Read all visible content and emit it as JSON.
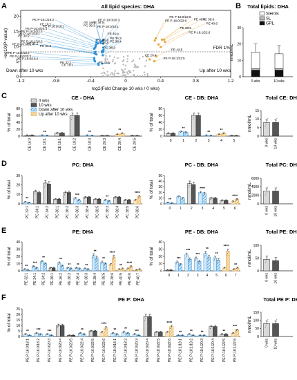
{
  "colors": {
    "grey": "#d9d9d9",
    "dark": "#555555",
    "blue": "#2b8fd6",
    "orange": "#e3a53b",
    "black": "#111111"
  },
  "panels": [
    {
      "letter": "A"
    },
    {
      "letter": "B"
    },
    {
      "letter": "C"
    },
    {
      "letter": "D"
    },
    {
      "letter": "E"
    },
    {
      "letter": "F"
    }
  ],
  "chart_data": [
    {
      "type": "scatter",
      "panel": "A",
      "title": "All lipid species: DHA",
      "xlabel": "log2(Fold Change 10 wks / 0 wks)",
      "ylabel": "-log10(P-value)",
      "xlim": [
        -1.2,
        1.2
      ],
      "xticks": [
        "-1.2",
        "-0.8",
        "-0.4",
        "0",
        "0.4",
        "0.8",
        "1.2"
      ],
      "yticks": [
        "0",
        "5",
        "10",
        "15",
        "20"
      ],
      "ylim": [
        0,
        22
      ],
      "threshold_label": "FDR 1%",
      "left_note": "Down after 10 wks",
      "right_note": "Up after 10 wks",
      "labels": [
        {
          "text": "PE P-18:0/22:6",
          "x": 0.5,
          "y": 19.5,
          "c": "orange"
        },
        {
          "text": "PE P-16:0/22:6",
          "x": 0.45,
          "y": 18.2,
          "c": "orange"
        },
        {
          "text": "PE 40:6",
          "x": 0.78,
          "y": 18.7,
          "c": "orange"
        },
        {
          "text": "PC 38:6",
          "x": 0.88,
          "y": 18.7,
          "c": "orange"
        },
        {
          "text": "PE 40:6",
          "x": 0.92,
          "y": 17.3,
          "c": "orange"
        },
        {
          "text": "PE P-18:1/22:6",
          "x": 0.72,
          "y": 14.3,
          "c": "orange"
        },
        {
          "text": "PE 38:6",
          "x": 0.62,
          "y": 15.8,
          "c": "orange"
        },
        {
          "text": "PE 42:5",
          "x": 0.52,
          "y": 8.6,
          "c": "orange"
        },
        {
          "text": "PE P-18:1/22:5",
          "x": 0.43,
          "y": 5.7,
          "c": "orange"
        },
        {
          "text": "CE 20:4",
          "x": 0.22,
          "y": 6.8,
          "c": "orange"
        },
        {
          "text": "PE P-18:0/20:3",
          "x": -0.07,
          "y": 18.4,
          "c": "blue"
        },
        {
          "text": "PE P-18:0/18:1",
          "x": -0.08,
          "y": 16.3,
          "c": "blue"
        },
        {
          "text": "PE 36:4",
          "x": -0.08,
          "y": 13.9,
          "c": "blue"
        },
        {
          "text": "PE 36:3",
          "x": -0.05,
          "y": 12.4,
          "c": "blue"
        },
        {
          "text": "PE 38:4",
          "x": -0.05,
          "y": 11.4,
          "c": "blue"
        },
        {
          "text": "PE 38:5",
          "x": -0.25,
          "y": 17.7,
          "c": "blue"
        },
        {
          "text": "PE 38:3",
          "x": -0.2,
          "y": 11.9,
          "c": "blue"
        },
        {
          "text": "PC 38:3",
          "x": -0.2,
          "y": 11.0,
          "c": "blue"
        },
        {
          "text": "PC 36:3",
          "x": -0.35,
          "y": 16.6,
          "c": "blue"
        },
        {
          "text": "PE 34:1",
          "x": -0.35,
          "y": 17.5,
          "c": "blue"
        },
        {
          "text": "PE P-18:1/18:2",
          "x": -0.82,
          "y": 18.6,
          "c": "blue"
        },
        {
          "text": "CE 16:1",
          "x": -0.85,
          "y": 17.1,
          "c": "blue"
        },
        {
          "text": "PE P-18:1/18:1",
          "x": -0.7,
          "y": 16.4,
          "c": "blue"
        },
        {
          "text": "PE P-16:0/20:3",
          "x": -0.9,
          "y": 15.6,
          "c": "blue"
        },
        {
          "text": "PE P-16:0/22:4",
          "x": -0.95,
          "y": 14.7,
          "c": "blue"
        },
        {
          "text": "PE P-18:1/18:1",
          "x": -0.98,
          "y": 13.9,
          "c": "blue"
        },
        {
          "text": "PE 34:2",
          "x": -1.1,
          "y": 13.2,
          "c": "blue"
        },
        {
          "text": "PE P-18:1/18:2",
          "x": -0.95,
          "y": 11.4,
          "c": "blue"
        },
        {
          "text": "PE P-16:0/22:4",
          "x": -1.05,
          "y": 10.4,
          "c": "blue"
        },
        {
          "text": "PC 34:2",
          "x": -0.85,
          "y": 9.8,
          "c": "blue"
        },
        {
          "text": "PE 32:1",
          "x": -1.0,
          "y": 10.6,
          "c": "blue"
        },
        {
          "text": "PE P-18:0/18:2",
          "x": -1.1,
          "y": 7.6,
          "c": "blue"
        },
        {
          "text": "PE P-16:0/20:3",
          "x": -1.08,
          "y": 6.4,
          "c": "blue"
        },
        {
          "text": "PE P-16:0/18:2",
          "x": -1.0,
          "y": 5.6,
          "c": "blue"
        },
        {
          "text": "PE 32:1",
          "x": -0.62,
          "y": 4.3,
          "c": "blue"
        },
        {
          "text": "CE 18:3",
          "x": -0.6,
          "y": 3.5,
          "c": "blue"
        },
        {
          "text": "PC 32:1",
          "x": -0.18,
          "y": 4.3,
          "c": "blue"
        },
        {
          "text": "PC 38:3",
          "x": -0.12,
          "y": 9.3,
          "c": "blue"
        }
      ]
    },
    {
      "type": "bar",
      "panel": "B",
      "title": "Total lipids: DHA",
      "ylabel": "nmol/mL",
      "categories": [
        "0 wks",
        "10 wks"
      ],
      "ylim": [
        0,
        30
      ],
      "yticks": [
        "0",
        "10",
        "20",
        "30"
      ],
      "series": [
        {
          "name": "GPL",
          "values": [
            4,
            4
          ]
        },
        {
          "name": "SL",
          "values": [
            1,
            1
          ]
        },
        {
          "name": "Sterols",
          "values": [
            10,
            9
          ]
        }
      ],
      "errors": [
        5,
        5
      ]
    },
    {
      "type": "bar",
      "panel": "C",
      "title": "CE - DHA",
      "ylabel": "% of total",
      "ylim": [
        0,
        80
      ],
      "yticks": [
        "0",
        "20",
        "40",
        "60",
        "80"
      ],
      "legend": [
        "0 wks",
        "10 wks",
        "Down after 10 wks",
        "Up after 10 wks"
      ],
      "categories": [
        "CE 16:0",
        "CE 16:1",
        "CE 18:1",
        "CE 18:2",
        "CE 18:3",
        "CE 20:3",
        "CE 20:4",
        "CE 20:5"
      ],
      "v0": [
        2,
        2,
        9,
        60,
        2,
        1,
        5,
        1
      ],
      "v10": [
        2,
        1,
        9,
        60,
        1,
        1,
        8,
        1
      ],
      "dir": [
        "n",
        "d",
        "n",
        "n",
        "d",
        "n",
        "u",
        "n"
      ],
      "stars": [
        "",
        "**",
        "",
        "",
        "**",
        "",
        "**",
        ""
      ]
    },
    {
      "type": "bar",
      "panel": "C-DB",
      "title": "CE - DB: DHA",
      "ylabel": "% of total",
      "ylim": [
        0,
        80
      ],
      "yticks": [
        "0",
        "20",
        "40",
        "60",
        "80"
      ],
      "categories": [
        "0",
        "1",
        "2",
        "3",
        "4",
        "5"
      ],
      "v0": [
        8,
        13,
        60,
        2,
        5,
        1
      ],
      "v10": [
        8,
        11,
        60,
        1,
        8,
        1
      ],
      "dir": [
        "n",
        "d",
        "n",
        "d",
        "u",
        "n"
      ],
      "stars": [
        "",
        "**",
        "",
        "**",
        "**",
        ""
      ]
    },
    {
      "type": "bar",
      "panel": "C-total",
      "title": "Total CE: DHA",
      "ylabel": "nmol/mL",
      "ylim": [
        0,
        15
      ],
      "yticks": [
        "0",
        "5",
        "10",
        "15"
      ],
      "categories": [
        "0 wks",
        "10 wks"
      ],
      "values": [
        8,
        8
      ]
    },
    {
      "type": "bar",
      "panel": "D",
      "title": "PC: DHA",
      "ylabel": "% of total",
      "ylim": [
        0,
        30
      ],
      "yticks": [
        "0",
        "10",
        "20",
        "30"
      ],
      "categories": [
        "PC 32:1",
        "PC 34:1",
        "PC 34:2",
        "PC 36:1",
        "PC 36:2",
        "PC 36:3",
        "PC 38:4",
        "PC 38:5",
        "PC 38:3",
        "PC 38:4",
        "PC 38:5",
        "PC 38:6"
      ],
      "v0": [
        2,
        13,
        22,
        5,
        12,
        6,
        7,
        5,
        4,
        7,
        4,
        4
      ],
      "v10": [
        1,
        12,
        21,
        5,
        12,
        4,
        7,
        5,
        3,
        7,
        4,
        8
      ],
      "dir": [
        "d",
        "n",
        "n",
        "n",
        "n",
        "d",
        "n",
        "n",
        "d",
        "n",
        "n",
        "u"
      ],
      "stars": [
        "**",
        "",
        "",
        "",
        "",
        "***",
        "",
        "",
        "**",
        "",
        "",
        "****"
      ]
    },
    {
      "type": "bar",
      "panel": "D-DB",
      "title": "PC - DB: DHA",
      "ylabel": "% of total",
      "ylim": [
        0,
        50
      ],
      "yticks": [
        "0",
        "10",
        "20",
        "30",
        "40",
        "50"
      ],
      "categories": [
        "0",
        "1",
        "2",
        "3",
        "4",
        "5",
        "6"
      ],
      "v0": [
        2,
        13,
        36,
        20,
        10,
        6,
        4
      ],
      "v10": [
        1,
        10,
        34,
        18,
        10,
        6,
        8
      ],
      "dir": [
        "d",
        "d",
        "n",
        "d",
        "n",
        "n",
        "u"
      ],
      "stars": [
        "**",
        "",
        "",
        "****",
        "",
        "",
        "****"
      ]
    },
    {
      "type": "bar",
      "panel": "D-total",
      "title": "Total PC: DHA",
      "ylabel": "nmol/mL",
      "ylim": [
        0,
        6000
      ],
      "yticks": [
        "0",
        "2000",
        "4000",
        "6000"
      ],
      "categories": [
        "0 wks",
        "10 wks"
      ],
      "values": [
        3000,
        3000
      ]
    },
    {
      "type": "bar",
      "panel": "E",
      "title": "PE: DHA",
      "ylabel": "% of total",
      "ylim": [
        0,
        40
      ],
      "yticks": [
        "0",
        "10",
        "20",
        "30",
        "40"
      ],
      "categories": [
        "PE 32:1",
        "PE 34:1",
        "PE 34:2",
        "PE 36:1",
        "PE 36:2",
        "PE 36:3",
        "PE 36:4",
        "PE 38:3",
        "PE 38:4",
        "PE 38:5",
        "PE 38:6",
        "PE 40:5",
        "PE 40:6",
        "PE 40:7"
      ],
      "v0": [
        2,
        6,
        13,
        4,
        11,
        4,
        4,
        3,
        21,
        12,
        9,
        2,
        3,
        1
      ],
      "v10": [
        1,
        4,
        10,
        4,
        7,
        3,
        3,
        2,
        18,
        10,
        19,
        3,
        6,
        2
      ],
      "dir": [
        "d",
        "d",
        "d",
        "n",
        "d",
        "d",
        "d",
        "d",
        "d",
        "d",
        "u",
        "u",
        "u",
        "u"
      ],
      "stars": [
        "**",
        "***",
        "**",
        "",
        "**",
        "**",
        "**",
        "**",
        "**",
        "**",
        "****",
        "**",
        "****",
        ""
      ]
    },
    {
      "type": "bar",
      "panel": "E-DB",
      "title": "PE - DB: DHA",
      "ylabel": "% of total",
      "ylim": [
        0,
        40
      ],
      "yticks": [
        "0",
        "10",
        "20",
        "30",
        "40"
      ],
      "categories": [
        "0",
        "1",
        "2",
        "3",
        "4",
        "5",
        "6",
        "7"
      ],
      "v0": [
        1,
        12,
        22,
        17,
        24,
        18,
        4,
        2
      ],
      "v10": [
        1,
        9,
        16,
        13,
        19,
        15,
        27,
        4
      ],
      "dir": [
        "n",
        "d",
        "d",
        "d",
        "d",
        "d",
        "u",
        "u"
      ],
      "stars": [
        "",
        "***",
        "***",
        "***",
        "**",
        "**",
        "****",
        "**"
      ]
    },
    {
      "type": "bar",
      "panel": "E-total",
      "title": "Total PE: DHA",
      "ylabel": "nmol/mL",
      "ylim": [
        0,
        100
      ],
      "yticks": [
        "0",
        "50",
        "100"
      ],
      "categories": [
        "0 wks",
        "10 wks"
      ],
      "values": [
        45,
        40
      ]
    },
    {
      "type": "bar",
      "panel": "F",
      "title": "PE P: DHA",
      "ylabel": "% of total",
      "ylim": [
        0,
        25
      ],
      "yticks": [
        "0",
        "5",
        "10",
        "15",
        "20",
        "25"
      ],
      "categories": [
        "PE P-16:0/18:1",
        "PE P-16:0/18:2",
        "PE P-16:0/20:3",
        "PE P-16:0/20:4",
        "PE P-16:0/20:5",
        "PE P-16:0/22:4",
        "PE P-16:0/22:5",
        "PE P-16:0/22:6",
        "PE P-18:0/18:1",
        "PE P-18:0/18:2",
        "PE P-18:0/20:3",
        "PE P-18:0/20:4",
        "PE P-18:0/22:5",
        "PE P-18:0/22:6",
        "PE P-18:1/18:1",
        "PE P-18:1/18:2",
        "PE P-18:1/20:3",
        "PE P-18:1/20:4",
        "PE P-18:1/22:5",
        "PE P-18:1/22:6"
      ],
      "v0": [
        2,
        3,
        2,
        10,
        1,
        3,
        5,
        4,
        3,
        4,
        2,
        18,
        4,
        4,
        1,
        2,
        1,
        9,
        2,
        3
      ],
      "v10": [
        1,
        2,
        1,
        10,
        1,
        2,
        5,
        8,
        2,
        3,
        1,
        18,
        4,
        9,
        1,
        1,
        1,
        9,
        2,
        6
      ],
      "dir": [
        "d",
        "d",
        "d",
        "n",
        "n",
        "d",
        "n",
        "u",
        "d",
        "d",
        "d",
        "n",
        "n",
        "u",
        "d",
        "d",
        "d",
        "n",
        "n",
        "u"
      ],
      "stars": [
        "**",
        "***",
        "***",
        "",
        "",
        "**",
        "",
        "****",
        "**",
        "**",
        "***",
        "",
        "",
        "****",
        "**",
        "**",
        "**",
        "",
        "**",
        "***"
      ]
    },
    {
      "type": "bar",
      "panel": "F-total",
      "title": "Total PE P: DHA",
      "ylabel": "nmol/mL",
      "ylim": [
        0,
        150
      ],
      "yticks": [
        "0",
        "50",
        "100",
        "150"
      ],
      "categories": [
        "0 wks",
        "10 wks"
      ],
      "values": [
        80,
        80
      ]
    }
  ]
}
